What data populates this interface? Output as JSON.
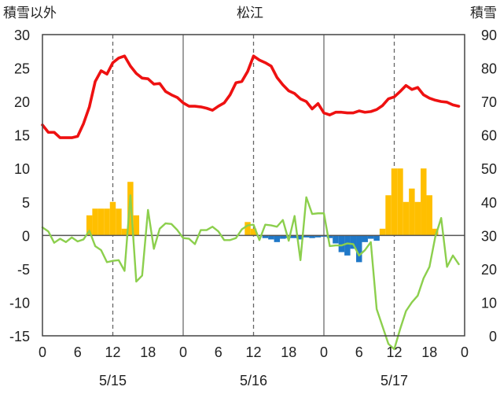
{
  "chart_data": {
    "type": "bar+line",
    "title": "松江",
    "left_axis_title": "積雪以外",
    "right_axis_title": "積雪",
    "left_axis": {
      "min": -15,
      "max": 30,
      "step": 5,
      "ticks": [
        "30",
        "25",
        "20",
        "15",
        "10",
        "5",
        "0",
        "-5",
        "-10",
        "-15"
      ]
    },
    "right_axis": {
      "min": 0,
      "max": 90,
      "step": 10,
      "ticks": [
        "90",
        "80",
        "70",
        "60",
        "50",
        "40",
        "30",
        "20",
        "10",
        "0"
      ]
    },
    "x_tick_labels": [
      "0",
      "6",
      "12",
      "18",
      "0",
      "6",
      "12",
      "18",
      "0",
      "6",
      "12",
      "18",
      "0"
    ],
    "day_labels": [
      "5/15",
      "5/16",
      "5/17"
    ],
    "grid": {
      "vertical_solid_every_hours": 24,
      "vertical_dashed_at_hours": [
        12,
        36,
        60
      ],
      "horizontal": false
    },
    "colors": {
      "temperature": "#ee1111",
      "precip_positive": "#ffbf00",
      "precip_negative": "#1f78c8",
      "green_series": "#8ccf4d",
      "axis": "#444444",
      "grid": "#888888"
    },
    "series": [
      {
        "key": "temperature",
        "axis": "left",
        "x_hours": [
          0,
          1,
          2,
          3,
          4,
          5,
          6,
          7,
          8,
          9,
          10,
          11,
          12,
          13,
          14,
          15,
          16,
          17,
          18,
          19,
          20,
          21,
          22,
          23,
          24,
          25,
          26,
          27,
          28,
          29,
          30,
          31,
          32,
          33,
          34,
          35,
          36,
          37,
          38,
          39,
          40,
          41,
          42,
          43,
          44,
          45,
          46,
          47,
          48,
          49,
          50,
          51,
          52,
          53,
          54,
          55,
          56,
          57,
          58,
          59,
          60,
          61,
          62,
          63,
          64,
          65,
          66,
          67,
          68,
          69,
          70,
          71
        ],
        "values": [
          16.5,
          15.4,
          15.4,
          14.6,
          14.6,
          14.6,
          14.8,
          16.7,
          19.2,
          23,
          24.6,
          24.1,
          25.8,
          26.5,
          26.8,
          25.3,
          24.2,
          23.5,
          23.4,
          22.6,
          22.7,
          21.5,
          21,
          20.6,
          19.8,
          19.3,
          19.3,
          19.2,
          19,
          18.7,
          19.3,
          19.8,
          21,
          22.8,
          23,
          24.5,
          26.8,
          26.2,
          25.8,
          25.3,
          23.6,
          22.5,
          21.6,
          21.2,
          20.4,
          20,
          18.9,
          19.7,
          18.3,
          18,
          18.4,
          18.4,
          18.3,
          18.3,
          18.6,
          18.4,
          18.5,
          18.8,
          19.4,
          20.4,
          20.7,
          21.5,
          22.4,
          21.8,
          22.1,
          21,
          20.5,
          20.2,
          20,
          19.9,
          19.5,
          19.3
        ]
      },
      {
        "key": "green_series",
        "axis": "left",
        "x_hours": [
          0,
          1,
          2,
          3,
          4,
          5,
          6,
          7,
          8,
          9,
          10,
          11,
          12,
          13,
          14,
          15,
          16,
          17,
          18,
          19,
          20,
          21,
          22,
          23,
          24,
          25,
          26,
          27,
          28,
          29,
          30,
          31,
          32,
          33,
          34,
          35,
          36,
          37,
          38,
          39,
          40,
          41,
          42,
          43,
          44,
          45,
          46,
          47,
          48,
          49,
          50,
          51,
          52,
          53,
          54,
          55,
          56,
          57,
          58,
          59,
          60,
          61,
          62,
          63,
          64,
          65,
          66,
          67,
          68,
          69,
          70,
          71
        ],
        "values": [
          1.2,
          0.6,
          -1.1,
          -0.5,
          -1,
          -0.3,
          -0.9,
          -0.6,
          0.7,
          -1.6,
          -2.2,
          -4,
          -3.8,
          -3.7,
          -5.3,
          6,
          -6.9,
          -6,
          3.8,
          -2,
          1,
          1.8,
          1.7,
          0.8,
          -0.4,
          -0.5,
          -1.3,
          0.8,
          0.8,
          1.3,
          0.6,
          -0.7,
          -0.7,
          -0.4,
          0.9,
          1.5,
          1.6,
          -0.7,
          1.6,
          1.5,
          1.3,
          2.3,
          -0.8,
          2.9,
          -3.7,
          5.7,
          3.2,
          3.3,
          3.3,
          -1.6,
          -1.5,
          -1.5,
          -1.2,
          -1.3,
          -3,
          -2.2,
          -1,
          -11,
          -13.6,
          -16.2,
          -17,
          -14,
          -11.3,
          -10,
          -9,
          -6.4,
          -4.7,
          -0.2,
          2.6,
          -4.7,
          -3,
          -4.3
        ]
      },
      {
        "key": "precip",
        "axis": "left",
        "type": "bar",
        "x_hours": [
          8,
          9,
          10,
          11,
          12,
          13,
          14,
          15,
          16,
          35,
          36,
          37,
          38,
          39,
          40,
          41,
          42,
          43,
          44,
          45,
          46,
          47,
          48,
          49,
          50,
          51,
          52,
          53,
          54,
          55,
          56,
          57,
          58,
          59,
          60,
          61,
          62,
          63,
          64,
          65,
          66,
          67,
          68,
          69,
          70,
          71
        ],
        "values": [
          3,
          4,
          4,
          4,
          5,
          4,
          1,
          8,
          3,
          2,
          1,
          -0.1,
          -0.4,
          -0.6,
          -1,
          -0.5,
          -0.4,
          -0.4,
          -0.6,
          -0.3,
          -0.4,
          -0.3,
          -0.2,
          -0.4,
          -1.2,
          -2.5,
          -3,
          -2,
          -4,
          -1,
          -0.5,
          -0.8,
          1,
          6,
          10,
          10,
          5,
          7,
          5,
          10,
          6,
          1,
          0,
          0,
          0,
          0
        ]
      }
    ]
  }
}
